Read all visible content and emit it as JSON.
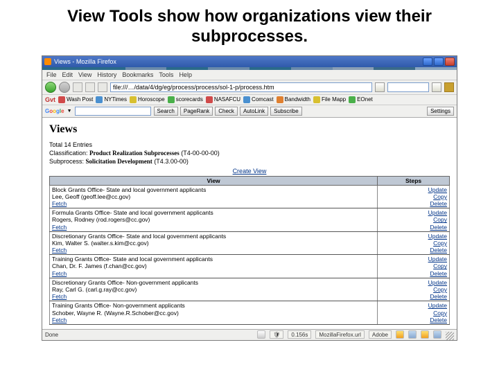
{
  "slide_title": "View Tools show how organizations view their subprocesses.",
  "window": {
    "title": "Views - Mozilla Firefox",
    "menu": [
      "File",
      "Edit",
      "View",
      "History",
      "Bookmarks",
      "Tools",
      "Help"
    ],
    "url": "file:///…/data/4/dg/eg/process/process/sol-1-p/process.htm"
  },
  "color_strip": [
    "#2a6a8a",
    "#2a6a8a",
    "#6a8aaa",
    "#2a6a8a",
    "#6a8aaa",
    "#2a6a8a",
    "#6a8aaa",
    "#8a9eb4",
    "#3a6a8a",
    "#8aa6c0"
  ],
  "linkbar": {
    "label": "Gvt",
    "items": [
      "Wash Post",
      "NYTimes",
      "Horoscope",
      "scorecards",
      "NASAFCU",
      "Comcast",
      "Bandwidth",
      "File Mapp",
      "EOnet"
    ]
  },
  "gbar": {
    "logo": "Google",
    "buttons": [
      "Search",
      "PageRank",
      "Check",
      "AutoLink",
      "Subscribe"
    ],
    "settings": "Settings"
  },
  "content": {
    "heading": "Views",
    "total": "Total 14 Entries",
    "class_label": "Classification:",
    "class_value": "Product Realization Subprocesses",
    "class_code": "(T4-00-00-00)",
    "sub_label": "Subprocess:",
    "sub_value": "Solicitation Development",
    "sub_code": "(T4.3.00-00)",
    "create": "Create View",
    "th_view": "View",
    "th_steps": "Steps",
    "actions": {
      "u": "Update",
      "c": "Copy",
      "d": "Delete"
    },
    "fetch": "Fetch",
    "rows": [
      {
        "title": "Block Grants Office- State and local government applicants",
        "person": "Lee, Geoff (geoff.lee@cc.gov)"
      },
      {
        "title": "Formula Grants Office- State and local government applicants",
        "person": "Rogers, Rodney (rod.rogers@cc.gov)"
      },
      {
        "title": "Discretionary Grants Office- State and local government applicants",
        "person": "Kim, Walter S. (walter.s.kim@cc.gov)"
      },
      {
        "title": "Training Grants Office- State and local government applicants",
        "person": "Chan, Dr. F. James (f.chan@cc.gov)"
      },
      {
        "title": "Discretionary Grants Office- Non-government applicants",
        "person": "Ray, Carl G. (carl.g.ray@cc.gov)"
      },
      {
        "title": "Training Grants Office- Non-government applicants",
        "person": "Schober, Wayne R. (Wayne.R.Schober@cc.gov)"
      }
    ]
  },
  "status": {
    "done": "Done",
    "time": "0.156s",
    "app": "MozillaFirefox.url",
    "adobe": "Adobe"
  }
}
